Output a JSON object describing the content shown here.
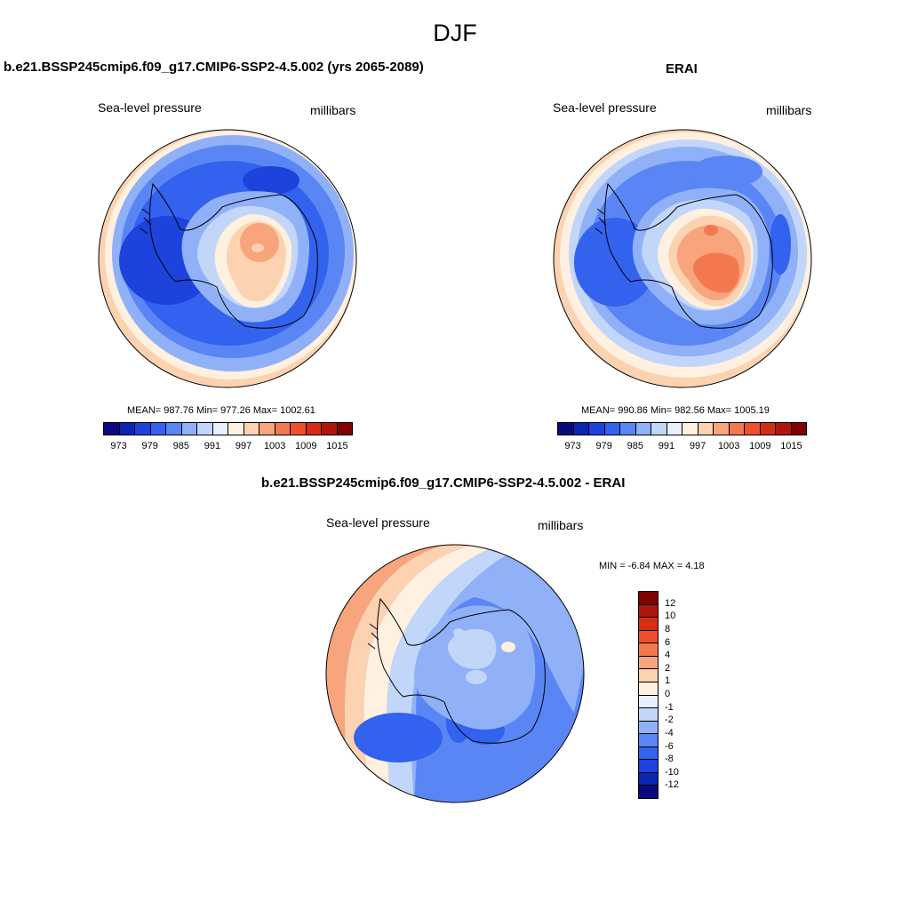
{
  "title": "DJF",
  "panels": [
    {
      "title": "b.e21.BSSP245cmip6.f09_g17.CMIP6-SSP2-4.5.002 (yrs 2065-2089)",
      "left_label": "Sea-level pressure",
      "right_label": "millibars",
      "stats": "MEAN= 987.76  Min= 977.26  Max= 1002.61"
    },
    {
      "title": "ERAI",
      "left_label": "Sea-level pressure",
      "right_label": "millibars",
      "stats": "MEAN= 990.86  Min= 982.56  Max= 1005.19"
    },
    {
      "title": "b.e21.BSSP245cmip6.f09_g17.CMIP6-SSP2-4.5.002 - ERAI",
      "left_label": "Sea-level pressure",
      "right_label": "millibars",
      "stats": "MIN =  -6.84 MAX =   4.18"
    }
  ],
  "colorbar_slp": {
    "colors": [
      "#0a0a7e",
      "#0b26b0",
      "#1d43dc",
      "#3262ee",
      "#5a86f5",
      "#90b1f8",
      "#c2d6fa",
      "#e8efff",
      "#fff0df",
      "#fcd2b0",
      "#f8a47d",
      "#f4784e",
      "#ee4f2d",
      "#d42d16",
      "#b0160c",
      "#800303"
    ],
    "ticks": [
      "973",
      "979",
      "985",
      "991",
      "997",
      "1003",
      "1009",
      "1015"
    ]
  },
  "colorbar_diff": {
    "colors": [
      "#800303",
      "#b0160c",
      "#d42d16",
      "#ee4f2d",
      "#f4784e",
      "#f8a47d",
      "#fcd2b0",
      "#fff0df",
      "#e8efff",
      "#c2d6fa",
      "#90b1f8",
      "#5a86f5",
      "#3262ee",
      "#1d43dc",
      "#0b26b0",
      "#0a0a7e"
    ],
    "ticks": [
      "12",
      "10",
      "8",
      "6",
      "4",
      "2",
      "1",
      "0",
      "-1",
      "-2",
      "-4",
      "-6",
      "-8",
      "-10",
      "-12"
    ]
  }
}
